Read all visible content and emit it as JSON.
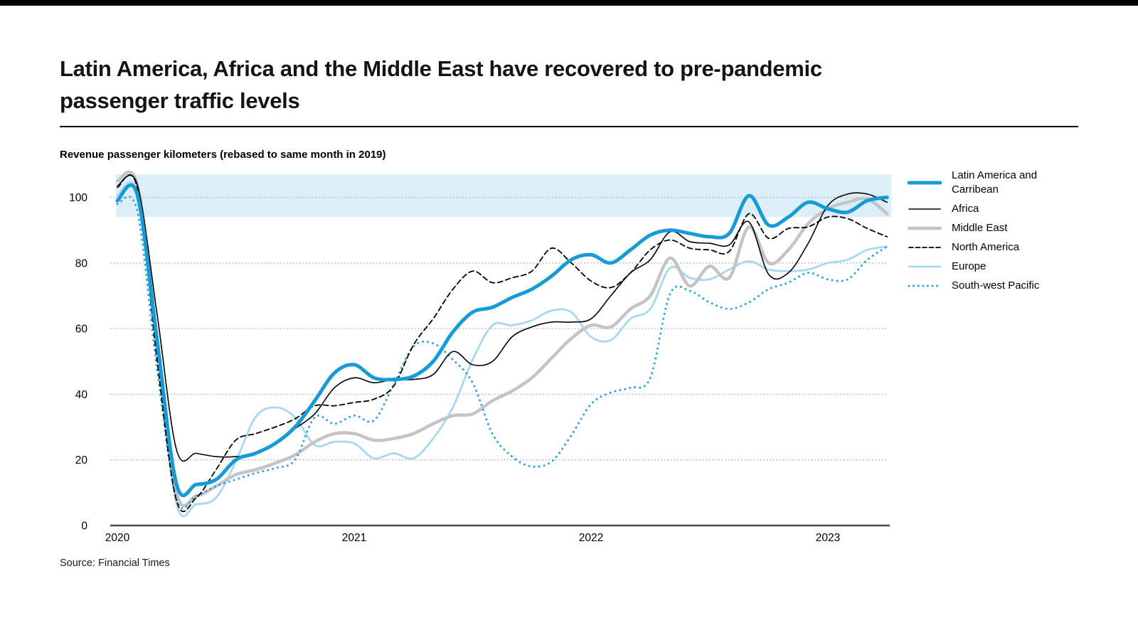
{
  "page": {
    "background": "#ffffff",
    "top_bar_color": "#000000"
  },
  "header": {
    "title_line1": "Latin America, Africa and the Middle East have recovered to pre-pandemic",
    "title_line2": "passenger traffic levels",
    "subtitle": "Revenue passenger kilometers (rebased to same month in 2019)"
  },
  "source_note": "Source: Financial Times",
  "chart_data": {
    "type": "line",
    "title": "Revenue passenger kilometers (rebased to same month in 2019)",
    "x_unit": "month",
    "months": [
      "2020-01",
      "2020-02",
      "2020-03",
      "2020-04",
      "2020-05",
      "2020-06",
      "2020-07",
      "2020-08",
      "2020-09",
      "2020-10",
      "2020-11",
      "2020-12",
      "2021-01",
      "2021-02",
      "2021-03",
      "2021-04",
      "2021-05",
      "2021-06",
      "2021-07",
      "2021-08",
      "2021-09",
      "2021-10",
      "2021-11",
      "2021-12",
      "2022-01",
      "2022-02",
      "2022-03",
      "2022-04",
      "2022-05",
      "2022-06",
      "2022-07",
      "2022-08",
      "2022-09",
      "2022-10",
      "2022-11",
      "2022-12",
      "2023-01",
      "2023-02",
      "2023-03",
      "2023-04"
    ],
    "x_tick_labels": [
      "2020",
      "2021",
      "2022",
      "2023"
    ],
    "x_tick_month_index": [
      0,
      12,
      24,
      36
    ],
    "ylim": [
      0,
      107
    ],
    "yticks": [
      0,
      20,
      40,
      60,
      80,
      100
    ],
    "grid": "horizontal-dotted",
    "gridline_color": "#aaaaaa",
    "axis_line_color": "#4a4a4a",
    "reference_band": {
      "from": 94,
      "to": 107,
      "color": "#dceef8"
    },
    "legend_position": "right",
    "series": [
      {
        "name": "Latin America and Carribean",
        "color": "#169bd7",
        "style": "solid",
        "width": 5,
        "values": [
          99,
          101,
          57,
          12.5,
          12.5,
          14,
          20,
          22,
          25,
          30,
          38,
          46.5,
          49,
          45,
          44.5,
          45.5,
          50,
          59,
          65,
          66.5,
          69.5,
          72,
          76,
          81,
          82.5,
          80,
          84,
          88.5,
          90,
          89,
          88,
          89,
          100.5,
          91.5,
          94,
          98.5,
          96.5,
          95.5,
          99,
          100
        ]
      },
      {
        "name": "Africa",
        "color": "#000000",
        "style": "solid",
        "width": 1.6,
        "values": [
          103.5,
          104,
          65,
          23,
          22,
          21,
          21,
          22,
          25,
          29.5,
          34,
          42,
          45,
          43.5,
          44.5,
          44.5,
          46,
          53,
          49,
          50,
          57.5,
          60.5,
          62,
          62,
          63,
          70,
          77,
          81,
          89.5,
          86.5,
          86,
          85.5,
          92.5,
          76.5,
          77,
          86,
          97.5,
          101,
          101,
          98.5
        ]
      },
      {
        "name": "Middle East",
        "color": "#c4c4c4",
        "style": "solid",
        "width": 4.5,
        "values": [
          105,
          104,
          58,
          10,
          9,
          12,
          15.5,
          17,
          19,
          21.5,
          25.5,
          28,
          28,
          26,
          26.5,
          28,
          31,
          33.5,
          34,
          38,
          41,
          45,
          51,
          57,
          61,
          60.5,
          66,
          70,
          81.5,
          73,
          79,
          75.5,
          91,
          80,
          84,
          92,
          96.5,
          98.5,
          99.5,
          95
        ]
      },
      {
        "name": "North America",
        "color": "#000000",
        "style": "dashed",
        "width": 1.8,
        "values": [
          103,
          103,
          51,
          7.5,
          8.5,
          17,
          26,
          28,
          30,
          32.5,
          36.5,
          36.5,
          37.5,
          38.5,
          42.5,
          55,
          63,
          72,
          77.5,
          74,
          75.5,
          77.5,
          84.5,
          80,
          74.5,
          72.5,
          77,
          84,
          87,
          84.5,
          84,
          83.5,
          95,
          87.5,
          90.5,
          91,
          94,
          93.5,
          90.5,
          88
        ]
      },
      {
        "name": "Europe",
        "color": "#a7d8f0",
        "style": "solid",
        "width": 2.8,
        "values": [
          100.5,
          101.5,
          55,
          6.5,
          6.5,
          8.5,
          19.5,
          33,
          36,
          33,
          24.5,
          25.5,
          25,
          20.5,
          22,
          20.5,
          26.5,
          36,
          50.5,
          61,
          61,
          62.5,
          65.5,
          65,
          57.5,
          56.5,
          63,
          66,
          78.5,
          75.5,
          75,
          78,
          80.5,
          78,
          77.5,
          78,
          80,
          81,
          84,
          85
        ]
      },
      {
        "name": "South-west Pacific",
        "color": "#2ca6dd",
        "style": "dotted",
        "width": 3,
        "values": [
          98,
          96,
          48,
          8,
          9,
          12,
          14,
          16,
          17.5,
          20,
          33,
          31,
          33.5,
          32,
          43,
          54.5,
          55.5,
          50.5,
          43.5,
          28,
          21,
          18,
          19.5,
          27.5,
          37,
          40.5,
          42,
          45,
          70.5,
          71.5,
          68,
          66,
          68,
          72,
          74,
          77,
          75,
          75,
          81,
          85
        ]
      }
    ]
  }
}
